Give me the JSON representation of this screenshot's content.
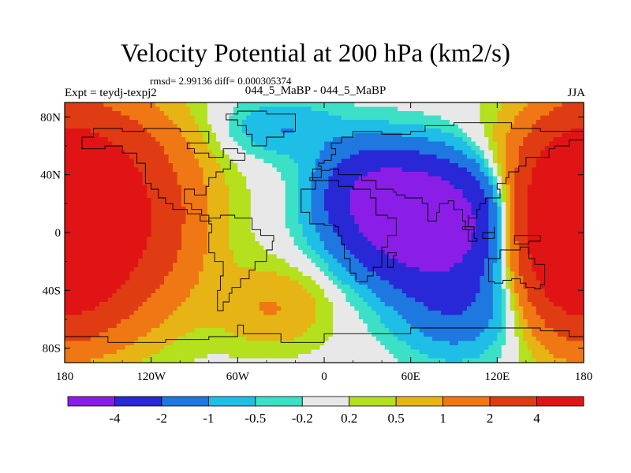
{
  "chart_data": {
    "type": "heatmap",
    "title": "Velocity Potential at 200 hPa (km2/s)",
    "stats_line": "rmsd= 2.99136 diff= 0.000305374",
    "left_label": "Expt = teydj-texpj2",
    "center_label": "044_5_MaBP - 044_5_MaBP",
    "season": "JJA",
    "x_ticks": [
      "180",
      "120W",
      "60W",
      "0",
      "60E",
      "120E",
      "180"
    ],
    "x_values": [
      -180,
      -120,
      -60,
      0,
      60,
      120,
      180
    ],
    "y_ticks": [
      "80N",
      "40N",
      "0",
      "40S",
      "80S"
    ],
    "y_values": [
      80,
      40,
      0,
      -40,
      -80
    ],
    "xlim": [
      -180,
      180
    ],
    "ylim": [
      -90,
      90
    ],
    "colorbar": {
      "labels": [
        "-4",
        "-2",
        "-1",
        "-0.5",
        "-0.2",
        "0.2",
        "0.5",
        "1",
        "2",
        "4"
      ],
      "thresholds": [
        -4,
        -2,
        -1,
        -0.5,
        -0.2,
        0.2,
        0.5,
        1,
        2,
        4
      ],
      "colors": [
        "#8a1ee6",
        "#2828d6",
        "#1e78e0",
        "#1ebee6",
        "#3ce0c6",
        "#e8e8e8",
        "#b4e01e",
        "#e6b414",
        "#f07814",
        "#e03c14",
        "#e01414"
      ]
    },
    "field_sources": [
      {
        "lon": 72,
        "lat": 8,
        "sx": 36,
        "sy": 28,
        "amp": -7.0
      },
      {
        "lon": 30,
        "lat": 30,
        "sx": 24,
        "sy": 22,
        "amp": -2.5
      },
      {
        "lon": 95,
        "lat": -50,
        "sx": 30,
        "sy": 25,
        "amp": -1.8
      },
      {
        "lon": -30,
        "lat": 72,
        "sx": 28,
        "sy": 14,
        "amp": -1.0
      },
      {
        "lon": -165,
        "lat": 12,
        "sx": 44,
        "sy": 48,
        "amp": 6.5
      },
      {
        "lon": 175,
        "lat": 2,
        "sx": 24,
        "sy": 40,
        "amp": 6.0
      },
      {
        "lon": -35,
        "lat": -52,
        "sx": 28,
        "sy": 20,
        "amp": 1.0
      }
    ]
  }
}
